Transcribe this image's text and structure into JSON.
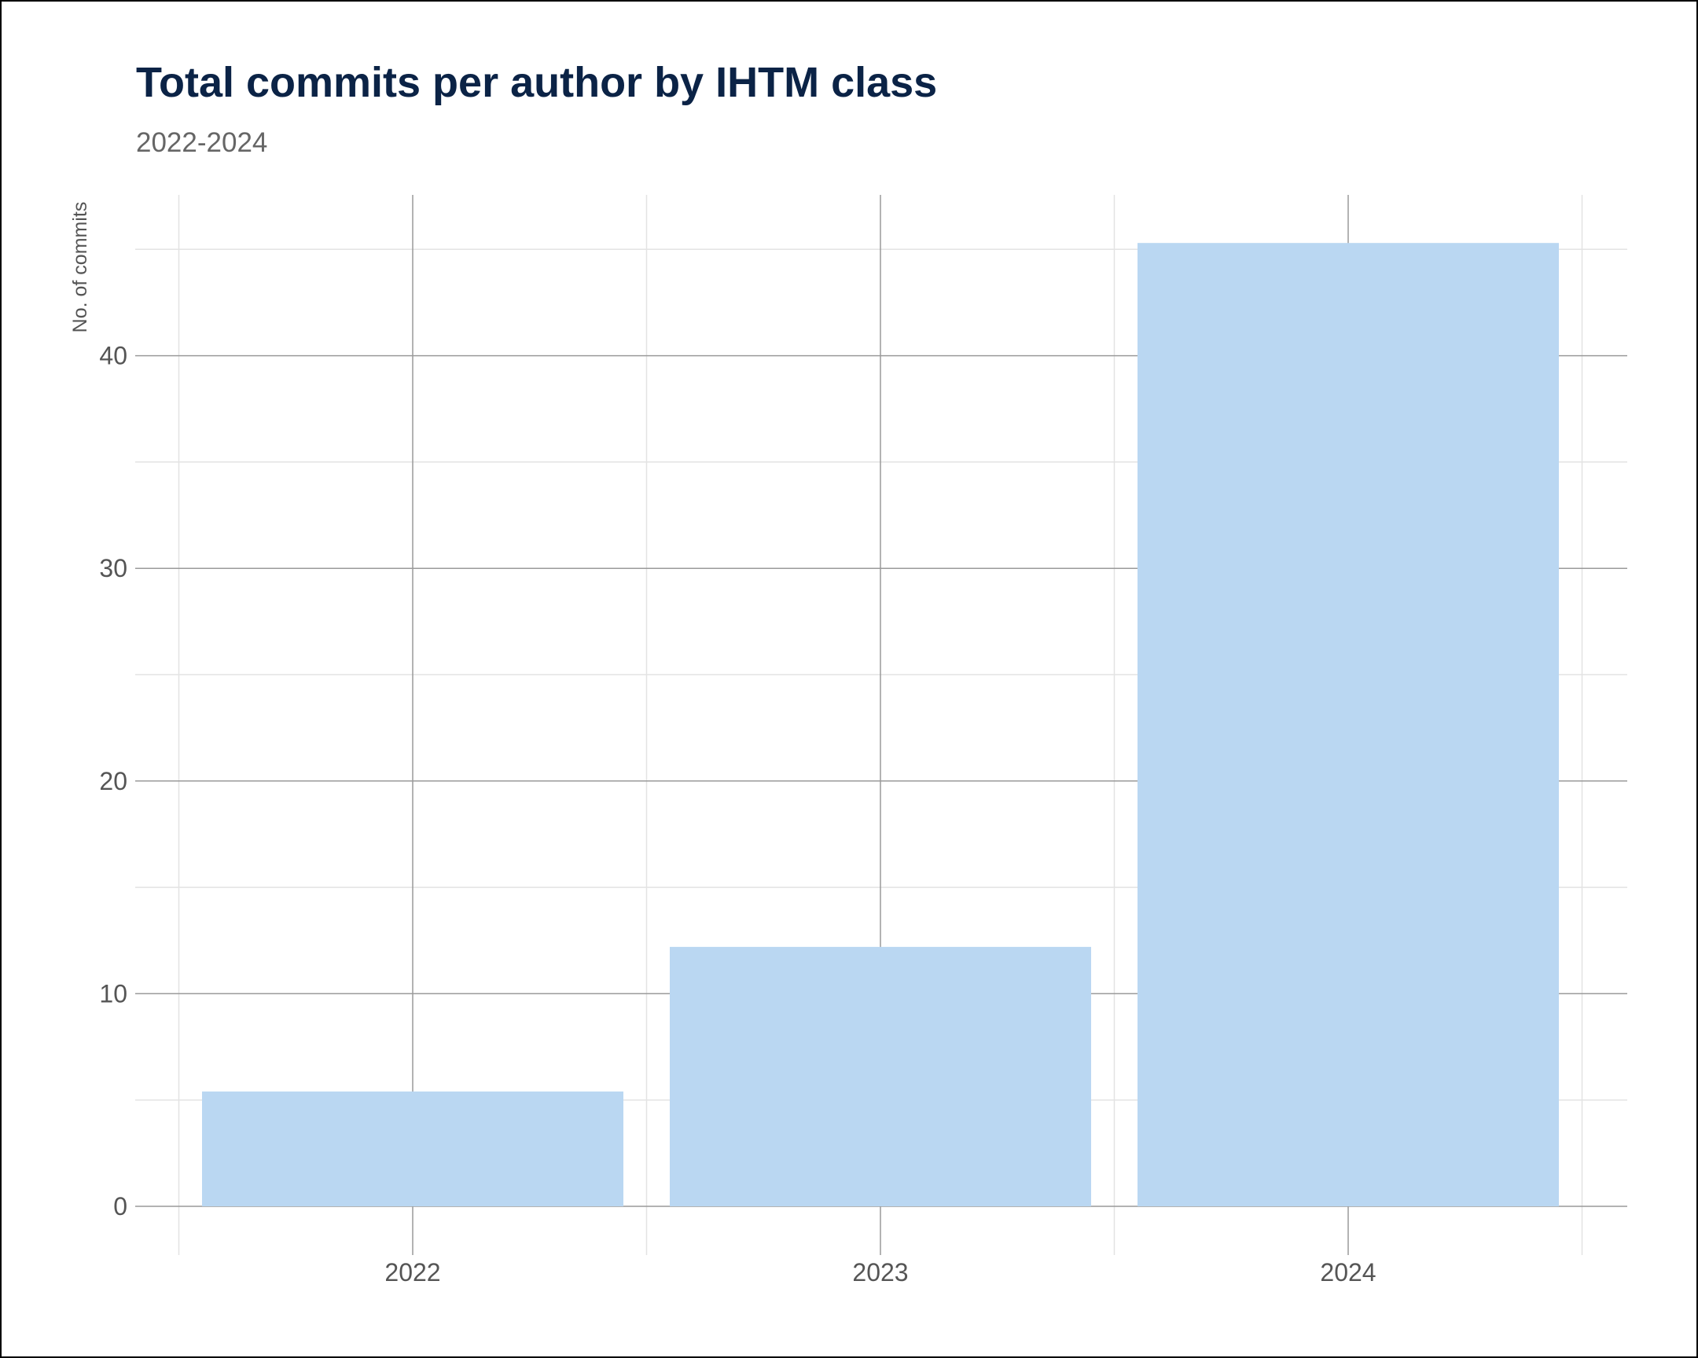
{
  "chart_data": {
    "type": "bar",
    "title": "Total commits per author by IHTM class",
    "subtitle": "2022-2024",
    "xlabel": "",
    "ylabel": "No. of commits",
    "categories": [
      "2022",
      "2023",
      "2024"
    ],
    "values": [
      5.4,
      12.2,
      45.3
    ],
    "ylim": [
      0,
      48
    ],
    "y_ticks": [
      0,
      10,
      20,
      30,
      40
    ],
    "y_tick_labels": [
      "0",
      "10",
      "20",
      "30",
      "40"
    ],
    "grid": true,
    "legend": "none",
    "bar_color": "#bad7f2",
    "major_grid_color": "#9a9a9a",
    "minor_grid_color": "#e3e3e3",
    "title_color": "#0b2346"
  }
}
